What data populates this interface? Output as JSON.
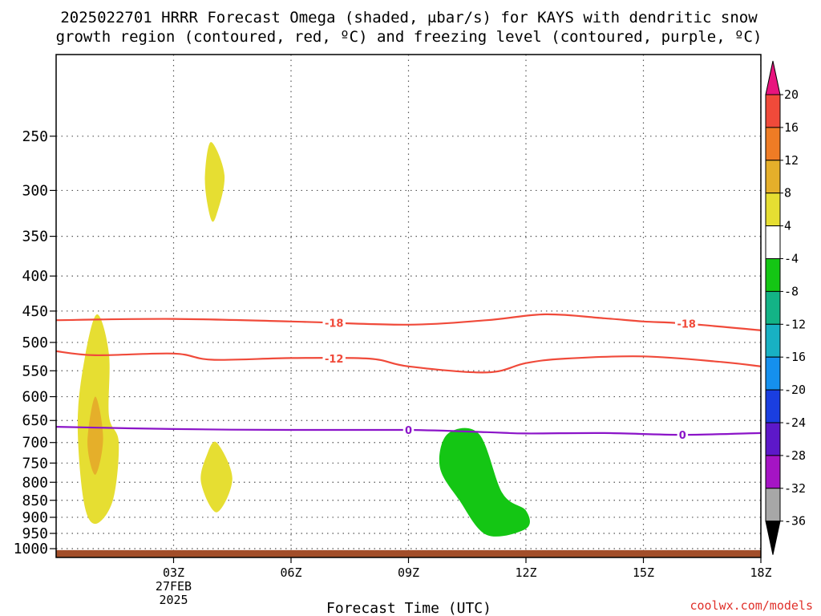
{
  "chart_data": {
    "type": "contour",
    "title_line1": "2025022701 HRRR Forecast Omega (shaded, μbar/s) for KAYS with dendritic snow",
    "title_line2": "growth region (contoured, red, ºC) and freezing level (contoured, purple, ºC)",
    "xlabel": "Forecast Time (UTC)",
    "credit": "coolwx.com/models",
    "x_range_hours": [
      0,
      18
    ],
    "y_scale": "log",
    "y_range_hpa": [
      1030,
      190
    ],
    "x_ticks": [
      {
        "h": 3,
        "label": "03Z",
        "date": "27FEB",
        "year": "2025"
      },
      {
        "h": 6,
        "label": "06Z"
      },
      {
        "h": 9,
        "label": "09Z"
      },
      {
        "h": 12,
        "label": "12Z"
      },
      {
        "h": 15,
        "label": "15Z"
      },
      {
        "h": 18,
        "label": "18Z"
      }
    ],
    "y_ticks": [
      250,
      300,
      350,
      400,
      450,
      500,
      550,
      600,
      650,
      700,
      750,
      800,
      850,
      900,
      950,
      1000
    ],
    "grid": true,
    "colorbar": {
      "levels": [
        20,
        16,
        12,
        8,
        4,
        -4,
        -8,
        -12,
        -16,
        -20,
        -24,
        -28,
        -32,
        -36
      ],
      "colors": [
        "#e8147e",
        "#f04a3a",
        "#ef7c25",
        "#e5af2a",
        "#e6de32",
        "#ffffff",
        "#14c614",
        "#13b386",
        "#18b1c3",
        "#1590ee",
        "#1a3ee0",
        "#5d18c9",
        "#a514c4",
        "#a7a7a7",
        "#000000"
      ]
    },
    "contours": [
      {
        "name": "-18",
        "color": "#f04a3a",
        "label_at": [
          7.1,
          16.1
        ],
        "points": [
          [
            0,
            464
          ],
          [
            3,
            462
          ],
          [
            6,
            466
          ],
          [
            9,
            471
          ],
          [
            11,
            464
          ],
          [
            12.5,
            455
          ],
          [
            14,
            461
          ],
          [
            15,
            466
          ],
          [
            16,
            469
          ],
          [
            18,
            480
          ]
        ]
      },
      {
        "name": "-12",
        "color": "#f04a3a",
        "label_at": [
          7.1
        ],
        "points": [
          [
            0,
            515
          ],
          [
            1,
            522
          ],
          [
            3,
            519
          ],
          [
            4,
            530
          ],
          [
            6,
            527
          ],
          [
            8,
            528
          ],
          [
            9,
            542
          ],
          [
            11,
            553
          ],
          [
            12,
            536
          ],
          [
            13,
            528
          ],
          [
            15,
            524
          ],
          [
            17,
            534
          ],
          [
            18,
            542
          ]
        ]
      },
      {
        "name": "0",
        "color": "#8b14c8",
        "label_at": [
          9,
          16
        ],
        "points": [
          [
            0,
            664
          ],
          [
            3,
            669
          ],
          [
            6,
            671
          ],
          [
            9,
            671
          ],
          [
            11,
            676
          ],
          [
            12,
            679
          ],
          [
            14,
            678
          ],
          [
            16,
            682
          ],
          [
            18,
            678
          ]
        ]
      }
    ],
    "omega_regions": [
      {
        "value": "4 to 8",
        "color": "#e6de32",
        "points": [
          [
            1,
            920
          ],
          [
            0.7,
            850
          ],
          [
            0.55,
            650
          ],
          [
            0.75,
            520
          ],
          [
            1.05,
            455
          ],
          [
            1.35,
            520
          ],
          [
            1.35,
            640
          ],
          [
            1.6,
            700
          ],
          [
            1.45,
            850
          ]
        ]
      },
      {
        "value": "8 to 12",
        "color": "#e5af2a",
        "points": [
          [
            1,
            780
          ],
          [
            0.8,
            700
          ],
          [
            1,
            600
          ],
          [
            1.2,
            690
          ]
        ]
      },
      {
        "value": "4 to 8",
        "color": "#e6de32",
        "points": [
          [
            3.95,
            330
          ],
          [
            3.8,
            290
          ],
          [
            3.95,
            255
          ],
          [
            4.3,
            285
          ],
          [
            4.1,
            325
          ]
        ]
      },
      {
        "value": "4 to 8",
        "color": "#e6de32",
        "points": [
          [
            4.1,
            885
          ],
          [
            3.7,
            800
          ],
          [
            3.85,
            730
          ],
          [
            4.1,
            700
          ],
          [
            4.5,
            790
          ]
        ]
      },
      {
        "value": "-4 to -8",
        "color": "#14c614",
        "points": [
          [
            10,
            680
          ],
          [
            10.8,
            680
          ],
          [
            11.4,
            830
          ],
          [
            12,
            880
          ],
          [
            12,
            935
          ],
          [
            11,
            955
          ],
          [
            10.3,
            850
          ],
          [
            9.8,
            760
          ]
        ]
      }
    ],
    "surface": {
      "color": "#a24e2a",
      "from_hpa": 1005
    }
  }
}
